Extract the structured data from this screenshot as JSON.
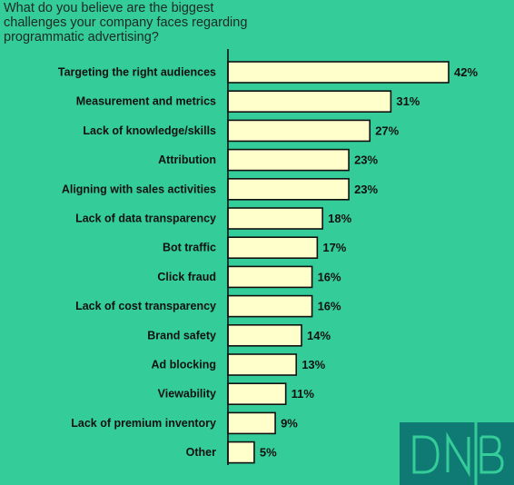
{
  "chart_data": {
    "type": "bar",
    "orientation": "horizontal",
    "title": "What do you believe are the biggest challenges your company faces regarding programmatic advertising?",
    "categories": [
      "Targeting the right audiences",
      "Measurement and metrics",
      "Lack of knowledge/skills",
      "Attribution",
      "Aligning with sales activities",
      "Lack of data transparency",
      "Bot traffic",
      "Click fraud",
      "Lack of cost transparency",
      "Brand safety",
      "Ad blocking",
      "Viewability",
      "Lack of premium inventory",
      "Other"
    ],
    "values": [
      42,
      31,
      27,
      23,
      23,
      18,
      17,
      16,
      16,
      14,
      13,
      11,
      9,
      5
    ],
    "value_suffix": "%",
    "xlim": [
      0,
      42
    ],
    "grid": false,
    "bar_color": "#ffffcc",
    "background_color": "#34cc98"
  },
  "logo": {
    "text": "DNB",
    "background": "#0f7a74",
    "color": "#34cc98"
  }
}
